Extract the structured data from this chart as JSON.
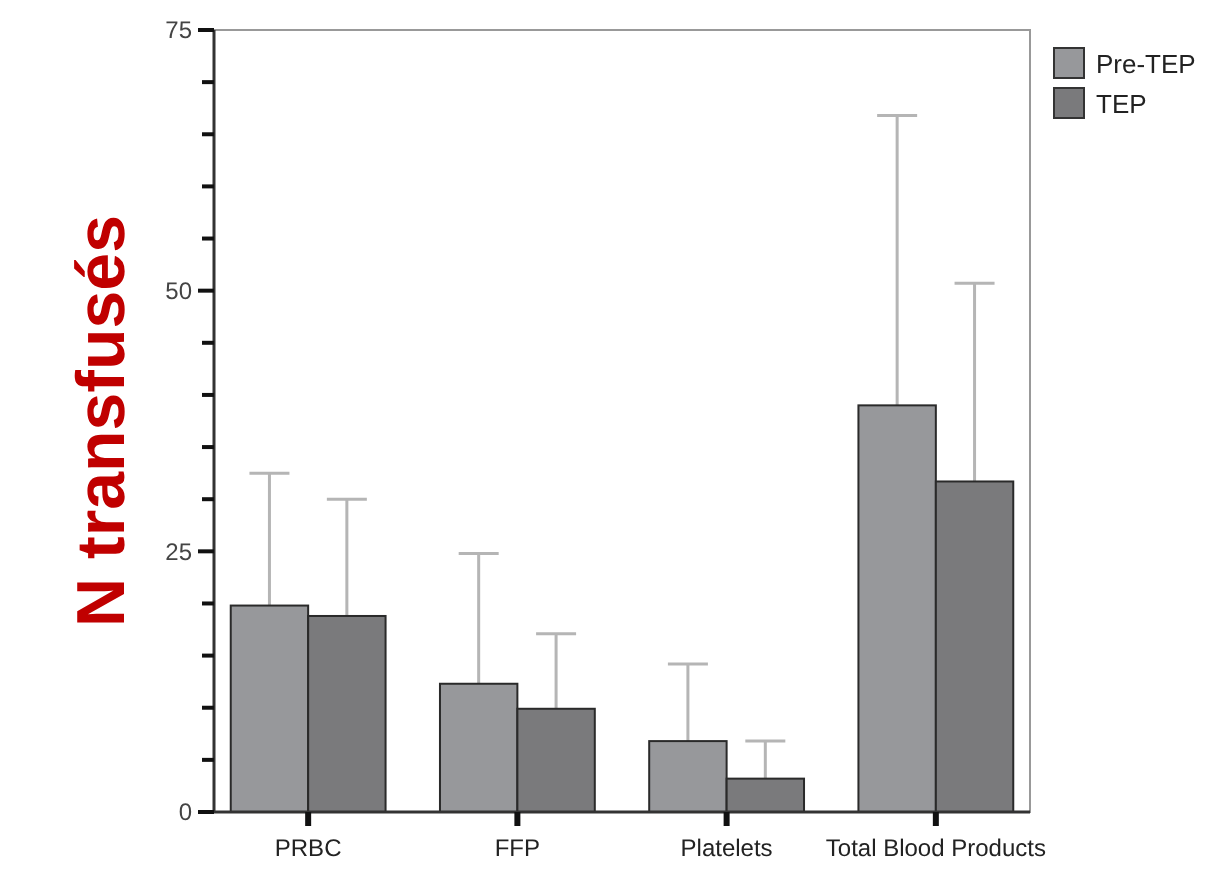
{
  "chart_data": {
    "type": "bar",
    "ylabel": "N transfusés",
    "categories": [
      "PRBC",
      "FFP",
      "Platelets",
      "Total Blood Products"
    ],
    "series": [
      {
        "name": "Pre-TEP",
        "color": "#97989b",
        "values": [
          19.8,
          12.3,
          6.8,
          39.0
        ],
        "errors": [
          [
            19.8,
            32.5
          ],
          [
            12.3,
            24.8
          ],
          [
            6.8,
            14.2
          ],
          [
            39.0,
            66.8
          ]
        ]
      },
      {
        "name": "TEP",
        "color": "#7a7a7c",
        "values": [
          18.8,
          9.9,
          3.2,
          31.7
        ],
        "errors": [
          [
            18.8,
            30.0
          ],
          [
            9.9,
            17.1
          ],
          [
            3.2,
            6.8
          ],
          [
            31.7,
            50.7
          ]
        ]
      }
    ],
    "ylim": [
      0,
      75
    ],
    "yticks": [
      0,
      {
        "value": 5,
        "label": null
      },
      {
        "value": 10,
        "label": null
      },
      {
        "value": 15,
        "label": null
      },
      {
        "value": 20,
        "label": null
      },
      25,
      {
        "value": 30,
        "label": null
      },
      {
        "value": 35,
        "label": null
      },
      {
        "value": 40,
        "label": null
      },
      {
        "value": 45,
        "label": null
      },
      50,
      {
        "value": 55,
        "label": null
      },
      {
        "value": 60,
        "label": null
      },
      {
        "value": 65,
        "label": null
      },
      {
        "value": 70,
        "label": null
      },
      75
    ],
    "legend": "top right",
    "grid": false
  }
}
